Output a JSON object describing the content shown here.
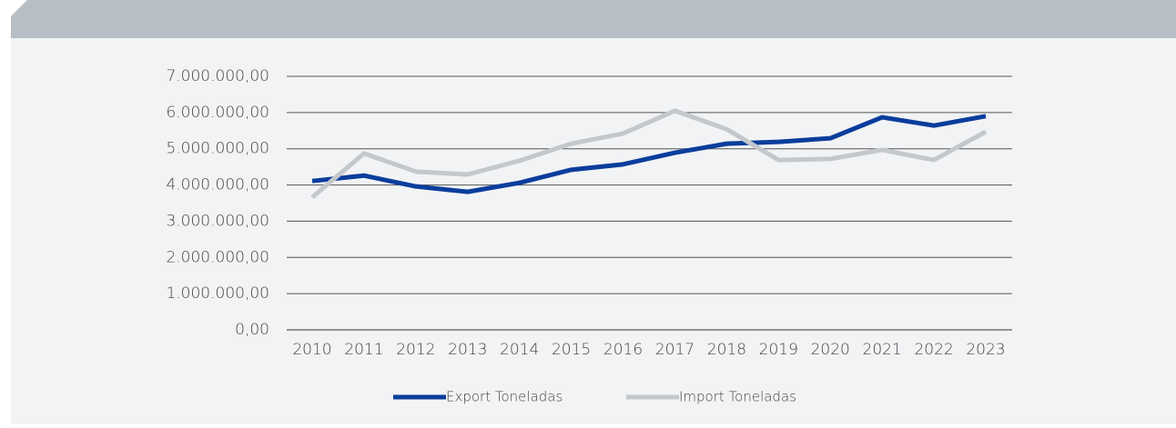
{
  "chart_data": {
    "type": "line",
    "categories": [
      "2010",
      "2011",
      "2012",
      "2013",
      "2014",
      "2015",
      "2016",
      "2017",
      "2018",
      "2019",
      "2020",
      "2021",
      "2022",
      "2023"
    ],
    "series": [
      {
        "name": "Export Toneladas",
        "color": "#0a3d9c",
        "values": [
          4110000,
          4260000,
          3960000,
          3810000,
          4060000,
          4420000,
          4570000,
          4890000,
          5140000,
          5190000,
          5290000,
          5870000,
          5640000,
          5900000
        ]
      },
      {
        "name": "Import Toneladas",
        "color": "#c4c7cb",
        "values": [
          3660000,
          4870000,
          4370000,
          4290000,
          4670000,
          5140000,
          5420000,
          6050000,
          5540000,
          4690000,
          4720000,
          4970000,
          4690000,
          5470000
        ]
      }
    ],
    "ylim": [
      0,
      7000000
    ],
    "yticks": [
      {
        "value": 0,
        "label": "0,00"
      },
      {
        "value": 1000000,
        "label": "1.000.000,00"
      },
      {
        "value": 2000000,
        "label": "2.000.000,00"
      },
      {
        "value": 3000000,
        "label": "3.000.000,00"
      },
      {
        "value": 4000000,
        "label": "4.000.000,00"
      },
      {
        "value": 5000000,
        "label": "5.000.000,00"
      },
      {
        "value": 6000000,
        "label": "6.000.000,00"
      },
      {
        "value": 7000000,
        "label": "7.000.000,00"
      }
    ],
    "grid": true,
    "legend": "bottom"
  }
}
